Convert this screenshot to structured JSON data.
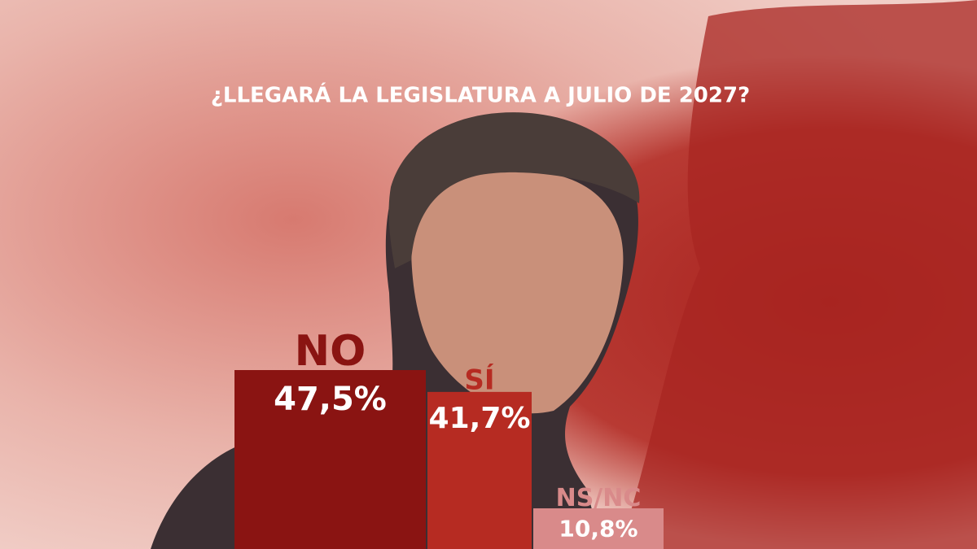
{
  "chart_data": {
    "type": "bar",
    "title": "¿LLEGARÁ LA LEGISLATURA A JULIO DE 2027?",
    "categories": [
      "NO",
      "SÍ",
      "NS/NC"
    ],
    "values": [
      47.5,
      41.7,
      10.8
    ],
    "value_labels": [
      "47,5%",
      "41,7%",
      "10,8%"
    ],
    "colors": [
      "#8a1412",
      "#b62b22",
      "#d98a8a"
    ]
  }
}
